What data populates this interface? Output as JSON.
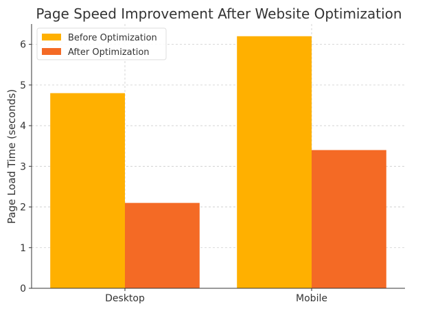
{
  "chart_data": {
    "type": "bar",
    "title": "Page Speed Improvement After Website Optimization",
    "xlabel": "",
    "ylabel": "Page Load Time (seconds)",
    "categories": [
      "Desktop",
      "Mobile"
    ],
    "series": [
      {
        "name": "Before Optimization",
        "values": [
          4.8,
          6.2
        ],
        "color": "#FFB000"
      },
      {
        "name": "After Optimization",
        "values": [
          2.1,
          3.4
        ],
        "color": "#F46A25"
      }
    ],
    "ylim": [
      0,
      6.5
    ],
    "yticks": [
      0,
      1,
      2,
      3,
      4,
      5,
      6
    ],
    "grid": true,
    "legend": "top-left"
  }
}
